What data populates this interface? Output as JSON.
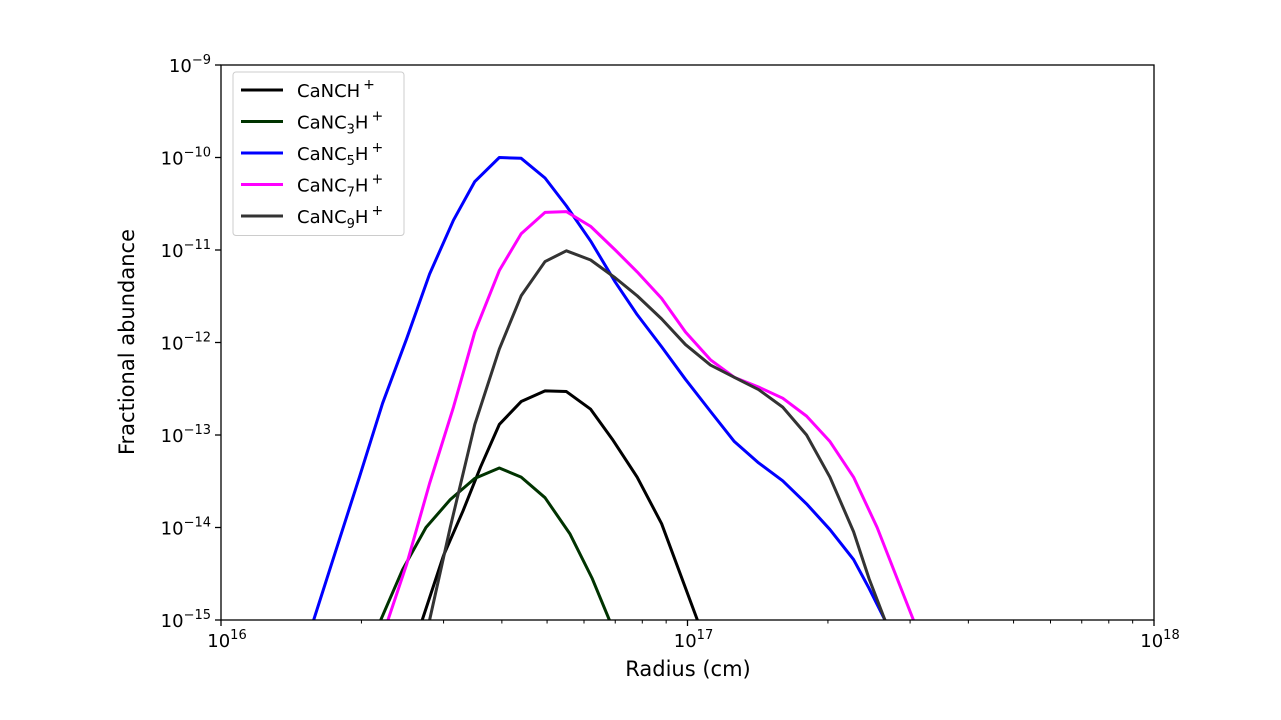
{
  "chart_data": {
    "type": "line",
    "title": "",
    "xlabel": "Radius (cm)",
    "ylabel": "Fractional abundance",
    "xscale": "log",
    "yscale": "log",
    "xlim": [
      1e+16,
      1e+18
    ],
    "ylim": [
      1e-15,
      1e-09
    ],
    "grid": false,
    "legend_position": "top-left",
    "x_ticks": [
      {
        "value": 1e+16,
        "base": "10",
        "exp": "16"
      },
      {
        "value": 1e+17,
        "base": "10",
        "exp": "17"
      },
      {
        "value": 1e+18,
        "base": "10",
        "exp": "18"
      }
    ],
    "y_ticks": [
      {
        "value": 1e-15,
        "base": "10",
        "exp": "−15"
      },
      {
        "value": 1e-14,
        "base": "10",
        "exp": "−14"
      },
      {
        "value": 1e-13,
        "base": "10",
        "exp": "−13"
      },
      {
        "value": 1e-12,
        "base": "10",
        "exp": "−12"
      },
      {
        "value": 1e-11,
        "base": "10",
        "exp": "−11"
      },
      {
        "value": 1e-10,
        "base": "10",
        "exp": "−10"
      },
      {
        "value": 1e-09,
        "base": "10",
        "exp": "−9"
      }
    ],
    "series": [
      {
        "name": "CaNCH+",
        "legend": {
          "main": "CaNCH",
          "sub": "",
          "rest": "",
          "sup": "+"
        },
        "color": "#000000",
        "points": [
          [
            2.7e+16,
            1e-15
          ],
          [
            3e+16,
            5e-15
          ],
          [
            3.3e+16,
            1.5e-14
          ],
          [
            3.6e+16,
            4.5e-14
          ],
          [
            3.95e+16,
            1.3e-13
          ],
          [
            4.4e+16,
            2.3e-13
          ],
          [
            4.95e+16,
            3e-13
          ],
          [
            5.5e+16,
            2.95e-13
          ],
          [
            6.2e+16,
            1.9e-13
          ],
          [
            6.9e+16,
            9e-14
          ],
          [
            7.8e+16,
            3.5e-14
          ],
          [
            8.8e+16,
            1.1e-14
          ],
          [
            1.05e+17,
            1e-15
          ]
        ]
      },
      {
        "name": "CaNC3H+",
        "legend": {
          "main": "CaNC",
          "sub": "3",
          "rest": "H",
          "sup": "+"
        },
        "color": "#003300",
        "points": [
          [
            2.2e+16,
            1e-15
          ],
          [
            2.45e+16,
            3.5e-15
          ],
          [
            2.75e+16,
            1e-14
          ],
          [
            3.1e+16,
            2e-14
          ],
          [
            3.5e+16,
            3.4e-14
          ],
          [
            3.95e+16,
            4.4e-14
          ],
          [
            4.4e+16,
            3.5e-14
          ],
          [
            4.95e+16,
            2.1e-14
          ],
          [
            5.6e+16,
            8.5e-15
          ],
          [
            6.25e+16,
            2.8e-15
          ],
          [
            6.8e+16,
            1e-15
          ]
        ]
      },
      {
        "name": "CaNC5H+",
        "legend": {
          "main": "CaNC",
          "sub": "5",
          "rest": "H",
          "sup": "+"
        },
        "color": "#0000ff",
        "points": [
          [
            1.58e+16,
            1e-15
          ],
          [
            1.76e+16,
            5.5e-15
          ],
          [
            1.98e+16,
            3.5e-14
          ],
          [
            2.22e+16,
            2.2e-13
          ],
          [
            2.5e+16,
            1.1e-12
          ],
          [
            2.8e+16,
            5.5e-12
          ],
          [
            3.15e+16,
            2.1e-11
          ],
          [
            3.5e+16,
            5.5e-11
          ],
          [
            3.95e+16,
            1e-10
          ],
          [
            4.4e+16,
            9.8e-11
          ],
          [
            4.95e+16,
            6e-11
          ],
          [
            5.5e+16,
            3e-11
          ],
          [
            6.2e+16,
            1.25e-11
          ],
          [
            7e+16,
            4.5e-12
          ],
          [
            7.8e+16,
            2e-12
          ],
          [
            8.8e+16,
            9e-13
          ],
          [
            9.9e+16,
            4e-13
          ],
          [
            1.12e+17,
            1.8e-13
          ],
          [
            1.26e+17,
            8.5e-14
          ],
          [
            1.42e+17,
            5e-14
          ],
          [
            1.6e+17,
            3.2e-14
          ],
          [
            1.8e+17,
            1.8e-14
          ],
          [
            2.02e+17,
            9.5e-15
          ],
          [
            2.27e+17,
            4.5e-15
          ],
          [
            2.45e+17,
            2.2e-15
          ],
          [
            2.65e+17,
            1e-15
          ]
        ]
      },
      {
        "name": "CaNC7H+",
        "legend": {
          "main": "CaNC",
          "sub": "7",
          "rest": "H",
          "sup": "+"
        },
        "color": "#ff00ff",
        "points": [
          [
            2.28e+16,
            1e-15
          ],
          [
            2.5e+16,
            4e-15
          ],
          [
            2.8e+16,
            3e-14
          ],
          [
            3.15e+16,
            2e-13
          ],
          [
            3.5e+16,
            1.3e-12
          ],
          [
            3.95e+16,
            6e-12
          ],
          [
            4.4e+16,
            1.5e-11
          ],
          [
            4.95e+16,
            2.55e-11
          ],
          [
            5.5e+16,
            2.6e-11
          ],
          [
            6.2e+16,
            1.8e-11
          ],
          [
            7e+16,
            1e-11
          ],
          [
            7.8e+16,
            5.8e-12
          ],
          [
            8.8e+16,
            3e-12
          ],
          [
            9.9e+16,
            1.3e-12
          ],
          [
            1.12e+17,
            6.5e-13
          ],
          [
            1.26e+17,
            4.2e-13
          ],
          [
            1.42e+17,
            3.3e-13
          ],
          [
            1.6e+17,
            2.5e-13
          ],
          [
            1.8e+17,
            1.6e-13
          ],
          [
            2.02e+17,
            8.5e-14
          ],
          [
            2.27e+17,
            3.5e-14
          ],
          [
            2.55e+17,
            1e-14
          ],
          [
            2.8e+17,
            3e-15
          ],
          [
            3.05e+17,
            1e-15
          ]
        ]
      },
      {
        "name": "CaNC9H+",
        "legend": {
          "main": "CaNC",
          "sub": "9",
          "rest": "H",
          "sup": "+"
        },
        "color": "#333333",
        "points": [
          [
            2.8e+16,
            1e-15
          ],
          [
            3.1e+16,
            1e-14
          ],
          [
            3.5e+16,
            1.3e-13
          ],
          [
            3.95e+16,
            8.5e-13
          ],
          [
            4.4e+16,
            3.2e-12
          ],
          [
            4.95e+16,
            7.5e-12
          ],
          [
            5.5e+16,
            9.8e-12
          ],
          [
            6.2e+16,
            7.8e-12
          ],
          [
            7e+16,
            5e-12
          ],
          [
            7.8e+16,
            3.2e-12
          ],
          [
            8.8e+16,
            1.8e-12
          ],
          [
            9.9e+16,
            9.5e-13
          ],
          [
            1.12e+17,
            5.7e-13
          ],
          [
            1.26e+17,
            4.2e-13
          ],
          [
            1.42e+17,
            3.1e-13
          ],
          [
            1.6e+17,
            2e-13
          ],
          [
            1.8e+17,
            1e-13
          ],
          [
            2.02e+17,
            3.5e-14
          ],
          [
            2.27e+17,
            9e-15
          ],
          [
            2.45e+17,
            2.8e-15
          ],
          [
            2.65e+17,
            1e-15
          ]
        ]
      }
    ]
  }
}
